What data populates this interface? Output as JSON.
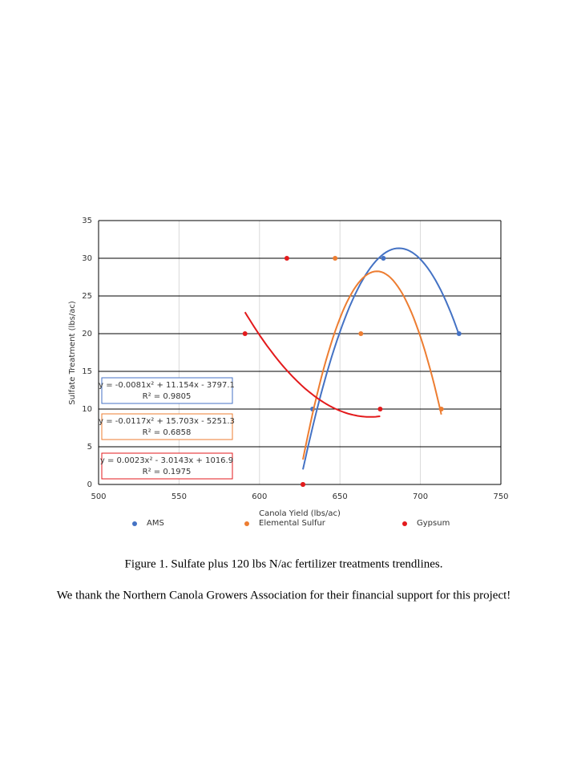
{
  "chart_data": {
    "type": "scatter",
    "x_label": "Canola Yield (lbs/ac)",
    "y_label": "Sulfate Treatment (lbs/ac)",
    "xlim": [
      500,
      750
    ],
    "xticks": [
      500,
      550,
      600,
      650,
      700,
      750
    ],
    "ylim": [
      0,
      35
    ],
    "yticks": [
      0,
      5,
      10,
      15,
      20,
      25,
      30,
      35
    ],
    "grid": true,
    "trendline": "quadratic",
    "legend": "bottom",
    "series": [
      {
        "name": "AMS",
        "color": "#4472c4",
        "x": [
          627,
          633,
          677,
          724
        ],
        "values": [
          0,
          10,
          30,
          20
        ],
        "equation": "y = -0.0081x² + 11.154x - 3797.1",
        "r2": "R² = 0.9805"
      },
      {
        "name": "Elemental Sulfur",
        "color": "#ed7d31",
        "x": [
          627,
          647,
          663,
          713
        ],
        "values": [
          0,
          30,
          20,
          10
        ],
        "equation": "y = -0.0117x² + 15.703x - 5251.3",
        "r2": "R² = 0.6858"
      },
      {
        "name": "Gypsum",
        "color": "#e31a1c",
        "x": [
          627,
          591,
          617,
          675
        ],
        "values": [
          0,
          20,
          30,
          10
        ],
        "equation": "y = 0.0023x² - 3.0143x + 1016.9",
        "r2": "R² = 0.1975"
      }
    ]
  },
  "caption": "Figure  1. Sulfate  plus  120 lbs  N/ac fertilizer  treatments  trendlines.",
  "acknowledgment": "We thank  the  Northern  Canola  Growers  Association  for  their  financial  support  for  this  project!"
}
